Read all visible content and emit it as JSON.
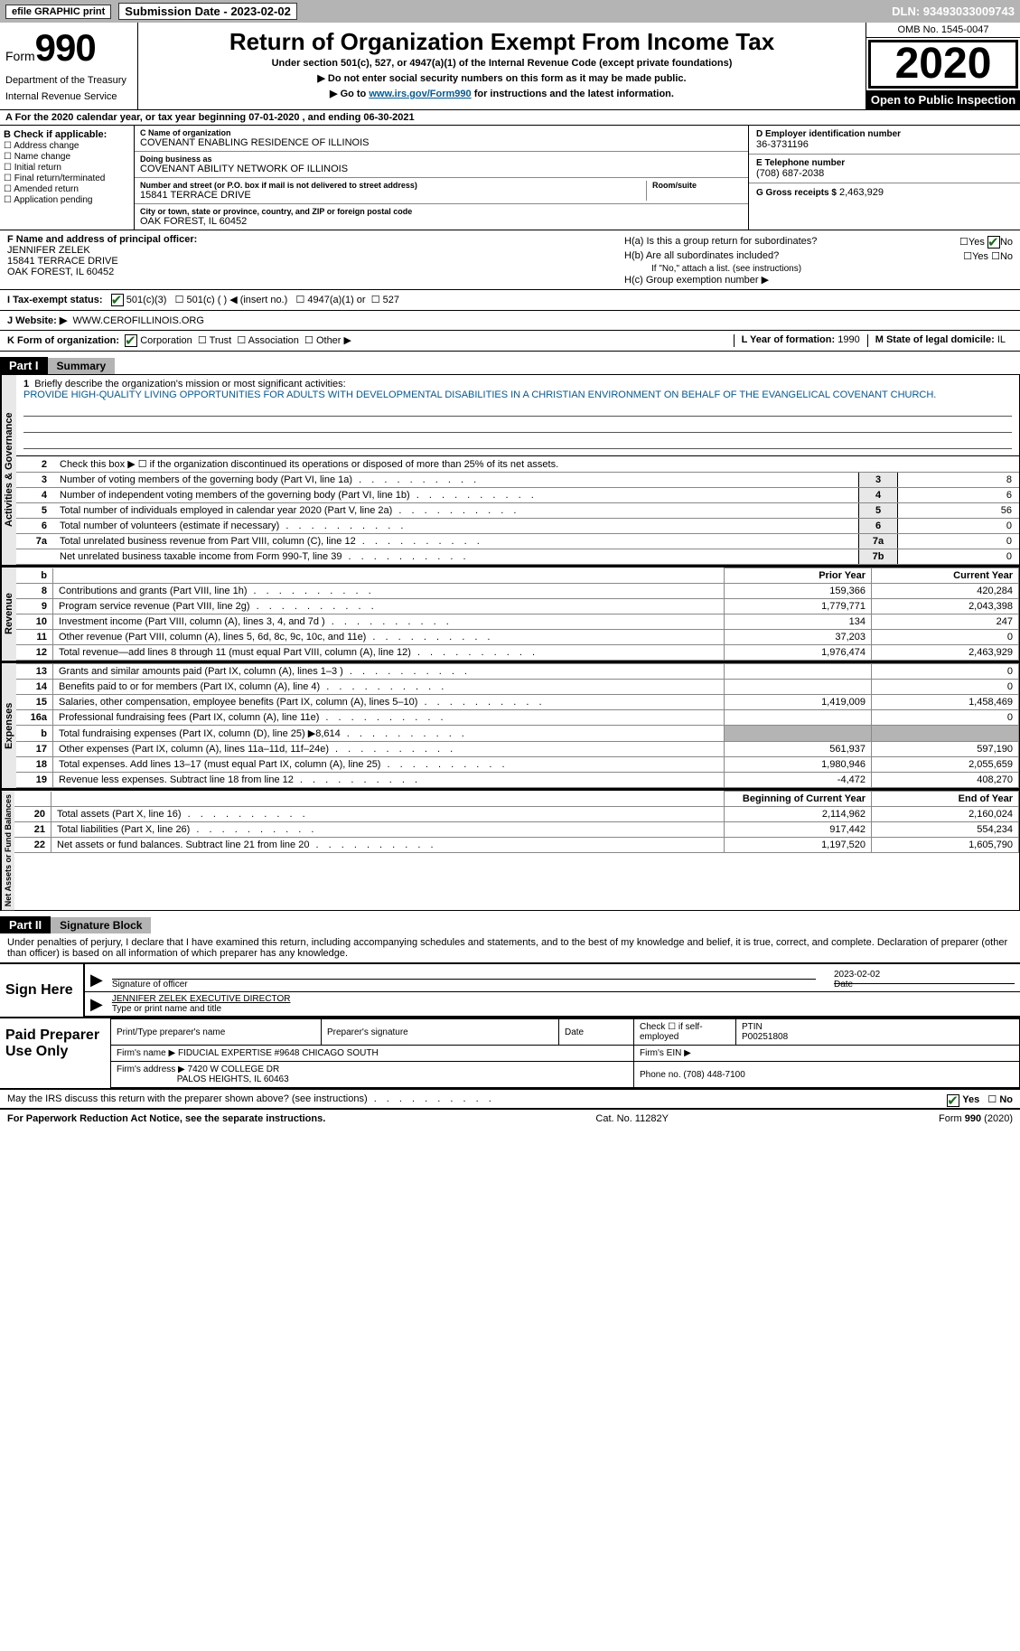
{
  "topbar": {
    "efile": "efile GRAPHIC print",
    "submission_label": "Submission Date - 2023-02-02",
    "dln": "DLN: 93493033009743"
  },
  "header": {
    "form_prefix": "Form",
    "form_number": "990",
    "dept1": "Department of the Treasury",
    "dept2": "Internal Revenue Service",
    "title": "Return of Organization Exempt From Income Tax",
    "sub": "Under section 501(c), 527, or 4947(a)(1) of the Internal Revenue Code (except private foundations)",
    "note1": "▶ Do not enter social security numbers on this form as it may be made public.",
    "note2_pre": "▶ Go to ",
    "note2_link": "www.irs.gov/Form990",
    "note2_post": " for instructions and the latest information.",
    "omb": "OMB No. 1545-0047",
    "year": "2020",
    "open_public": "Open to Public Inspection"
  },
  "line_a": "A For the 2020 calendar year, or tax year beginning 07-01-2020   , and ending 06-30-2021",
  "box_b": {
    "title": "B Check if applicable:",
    "items": [
      "Address change",
      "Name change",
      "Initial return",
      "Final return/terminated",
      "Amended return",
      "Application pending"
    ]
  },
  "box_c": {
    "name_lbl": "C Name of organization",
    "name": "COVENANT ENABLING RESIDENCE OF ILLINOIS",
    "dba_lbl": "Doing business as",
    "dba": "COVENANT ABILITY NETWORK OF ILLINOIS",
    "addr_lbl": "Number and street (or P.O. box if mail is not delivered to street address)",
    "addr": "15841 TERRACE DRIVE",
    "room_lbl": "Room/suite",
    "city_lbl": "City or town, state or province, country, and ZIP or foreign postal code",
    "city": "OAK FOREST, IL  60452"
  },
  "box_d": {
    "ein_lbl": "D Employer identification number",
    "ein": "36-3731196",
    "tel_lbl": "E Telephone number",
    "tel": "(708) 687-2038",
    "gross_lbl": "G Gross receipts $",
    "gross": "2,463,929"
  },
  "box_f": {
    "lbl": "F Name and address of principal officer:",
    "name": "JENNIFER ZELEK",
    "addr1": "15841 TERRACE DRIVE",
    "addr2": "OAK FOREST, IL  60452"
  },
  "box_h": {
    "ha_lbl": "H(a)  Is this a group return for subordinates?",
    "hb_lbl": "H(b)  Are all subordinates included?",
    "hb_note": "If \"No,\" attach a list. (see instructions)",
    "hc_lbl": "H(c)  Group exemption number ▶",
    "yes": "Yes",
    "no": "No"
  },
  "row_i": {
    "lbl": "I   Tax-exempt status:",
    "opt1": "501(c)(3)",
    "opt2": "501(c) (  ) ◀ (insert no.)",
    "opt3": "4947(a)(1) or",
    "opt4": "527"
  },
  "row_j": {
    "lbl": "J   Website: ▶",
    "val": "WWW.CEROFILLINOIS.ORG"
  },
  "row_k": {
    "lbl": "K Form of organization:",
    "opts": [
      "Corporation",
      "Trust",
      "Association",
      "Other ▶"
    ],
    "l_lbl": "L Year of formation:",
    "l_val": "1990",
    "m_lbl": "M State of legal domicile:",
    "m_val": "IL"
  },
  "part1": {
    "label": "Part I",
    "title": "Summary",
    "q1_lbl": "Briefly describe the organization's mission or most significant activities:",
    "q1": "1",
    "mission": "PROVIDE HIGH-QUALITY LIVING OPPORTUNITIES FOR ADULTS WITH DEVELOPMENTAL DISABILITIES IN A CHRISTIAN ENVIRONMENT ON BEHALF OF THE EVANGELICAL COVENANT CHURCH.",
    "q2": "Check this box ▶ ☐  if the organization discontinued its operations or disposed of more than 25% of its net assets.",
    "vert_ag": "Activities & Governance",
    "vert_rev": "Revenue",
    "vert_exp": "Expenses",
    "vert_na": "Net Assets or Fund Balances"
  },
  "gov_rows": [
    {
      "n": "3",
      "d": "Number of voting members of the governing body (Part VI, line 1a)",
      "b": "3",
      "v": "8"
    },
    {
      "n": "4",
      "d": "Number of independent voting members of the governing body (Part VI, line 1b)",
      "b": "4",
      "v": "6"
    },
    {
      "n": "5",
      "d": "Total number of individuals employed in calendar year 2020 (Part V, line 2a)",
      "b": "5",
      "v": "56"
    },
    {
      "n": "6",
      "d": "Total number of volunteers (estimate if necessary)",
      "b": "6",
      "v": "0"
    },
    {
      "n": "7a",
      "d": "Total unrelated business revenue from Part VIII, column (C), line 12",
      "b": "7a",
      "v": "0"
    },
    {
      "n": "",
      "d": "Net unrelated business taxable income from Form 990-T, line 39",
      "b": "7b",
      "v": "0"
    }
  ],
  "fin_headers": {
    "b": "b",
    "prior": "Prior Year",
    "current": "Current Year"
  },
  "rev_rows": [
    {
      "n": "8",
      "d": "Contributions and grants (Part VIII, line 1h)",
      "p": "159,366",
      "c": "420,284"
    },
    {
      "n": "9",
      "d": "Program service revenue (Part VIII, line 2g)",
      "p": "1,779,771",
      "c": "2,043,398"
    },
    {
      "n": "10",
      "d": "Investment income (Part VIII, column (A), lines 3, 4, and 7d )",
      "p": "134",
      "c": "247"
    },
    {
      "n": "11",
      "d": "Other revenue (Part VIII, column (A), lines 5, 6d, 8c, 9c, 10c, and 11e)",
      "p": "37,203",
      "c": "0"
    },
    {
      "n": "12",
      "d": "Total revenue—add lines 8 through 11 (must equal Part VIII, column (A), line 12)",
      "p": "1,976,474",
      "c": "2,463,929"
    }
  ],
  "exp_rows": [
    {
      "n": "13",
      "d": "Grants and similar amounts paid (Part IX, column (A), lines 1–3 )",
      "p": "",
      "c": "0"
    },
    {
      "n": "14",
      "d": "Benefits paid to or for members (Part IX, column (A), line 4)",
      "p": "",
      "c": "0"
    },
    {
      "n": "15",
      "d": "Salaries, other compensation, employee benefits (Part IX, column (A), lines 5–10)",
      "p": "1,419,009",
      "c": "1,458,469"
    },
    {
      "n": "16a",
      "d": "Professional fundraising fees (Part IX, column (A), line 11e)",
      "p": "",
      "c": "0"
    },
    {
      "n": "b",
      "d": "Total fundraising expenses (Part IX, column (D), line 25) ▶8,614",
      "p": "shade",
      "c": "shade"
    },
    {
      "n": "17",
      "d": "Other expenses (Part IX, column (A), lines 11a–11d, 11f–24e)",
      "p": "561,937",
      "c": "597,190"
    },
    {
      "n": "18",
      "d": "Total expenses. Add lines 13–17 (must equal Part IX, column (A), line 25)",
      "p": "1,980,946",
      "c": "2,055,659"
    },
    {
      "n": "19",
      "d": "Revenue less expenses. Subtract line 18 from line 12",
      "p": "-4,472",
      "c": "408,270"
    }
  ],
  "na_headers": {
    "b": "Beginning of Current Year",
    "e": "End of Year"
  },
  "na_rows": [
    {
      "n": "20",
      "d": "Total assets (Part X, line 16)",
      "p": "2,114,962",
      "c": "2,160,024"
    },
    {
      "n": "21",
      "d": "Total liabilities (Part X, line 26)",
      "p": "917,442",
      "c": "554,234"
    },
    {
      "n": "22",
      "d": "Net assets or fund balances. Subtract line 21 from line 20",
      "p": "1,197,520",
      "c": "1,605,790"
    }
  ],
  "part2": {
    "label": "Part II",
    "title": "Signature Block",
    "decl": "Under penalties of perjury, I declare that I have examined this return, including accompanying schedules and statements, and to the best of my knowledge and belief, it is true, correct, and complete. Declaration of preparer (other than officer) is based on all information of which preparer has any knowledge."
  },
  "sign": {
    "here": "Sign Here",
    "sig_lbl": "Signature of officer",
    "date_lbl": "Date",
    "date": "2023-02-02",
    "name": "JENNIFER ZELEK EXECUTIVE DIRECTOR",
    "name_lbl": "Type or print name and title"
  },
  "prep": {
    "title": "Paid Preparer Use Only",
    "h1": "Print/Type preparer's name",
    "h2": "Preparer's signature",
    "h3": "Date",
    "h4": "Check ☐ if self-employed",
    "h5_lbl": "PTIN",
    "h5": "P00251808",
    "firm_name_lbl": "Firm's name    ▶",
    "firm_name": "FIDUCIAL EXPERTISE #9648 CHICAGO SOUTH",
    "firm_ein_lbl": "Firm's EIN ▶",
    "firm_addr_lbl": "Firm's address ▶",
    "firm_addr1": "7420 W COLLEGE DR",
    "firm_addr2": "PALOS HEIGHTS, IL  60463",
    "firm_phone_lbl": "Phone no.",
    "firm_phone": "(708) 448-7100"
  },
  "discuss": {
    "q": "May the IRS discuss this return with the preparer shown above? (see instructions)",
    "yes": "Yes",
    "no": "No"
  },
  "footer": {
    "left": "For Paperwork Reduction Act Notice, see the separate instructions.",
    "center": "Cat. No. 11282Y",
    "right": "Form 990 (2020)"
  }
}
